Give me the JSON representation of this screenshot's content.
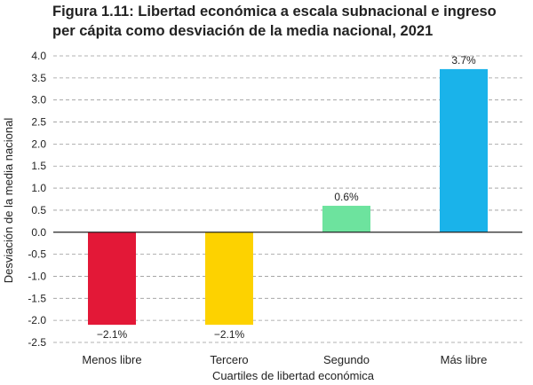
{
  "title_line1": "Figura 1.11: Libertad económica a escala subnacional e ingreso",
  "title_line2": "per cápita como desviación de la media nacional, 2021",
  "chart_data": {
    "type": "bar",
    "categories": [
      "Menos libre",
      "Tercero",
      "Segundo",
      "Más libre"
    ],
    "values": [
      -2.1,
      -2.1,
      0.6,
      3.7
    ],
    "data_labels": [
      "−2.1%",
      "−2.1%",
      "0.6%",
      "3.7%"
    ],
    "colors": [
      "#e31837",
      "#fdd200",
      "#6de39e",
      "#1ab3ea"
    ],
    "xlabel": "Cuartiles de libertad económica",
    "ylabel": "Desviación de la media nacional",
    "ylim": [
      -2.5,
      4.0
    ],
    "yticks": [
      "4.0",
      "3.5",
      "3.0",
      "2.5",
      "2.0",
      "1.5",
      "1.0",
      "0.5",
      "0.0",
      "-0.5",
      "-1.0",
      "-1.5",
      "-2.0",
      "-2.5"
    ],
    "grid": true,
    "grid_style": "dashed"
  }
}
